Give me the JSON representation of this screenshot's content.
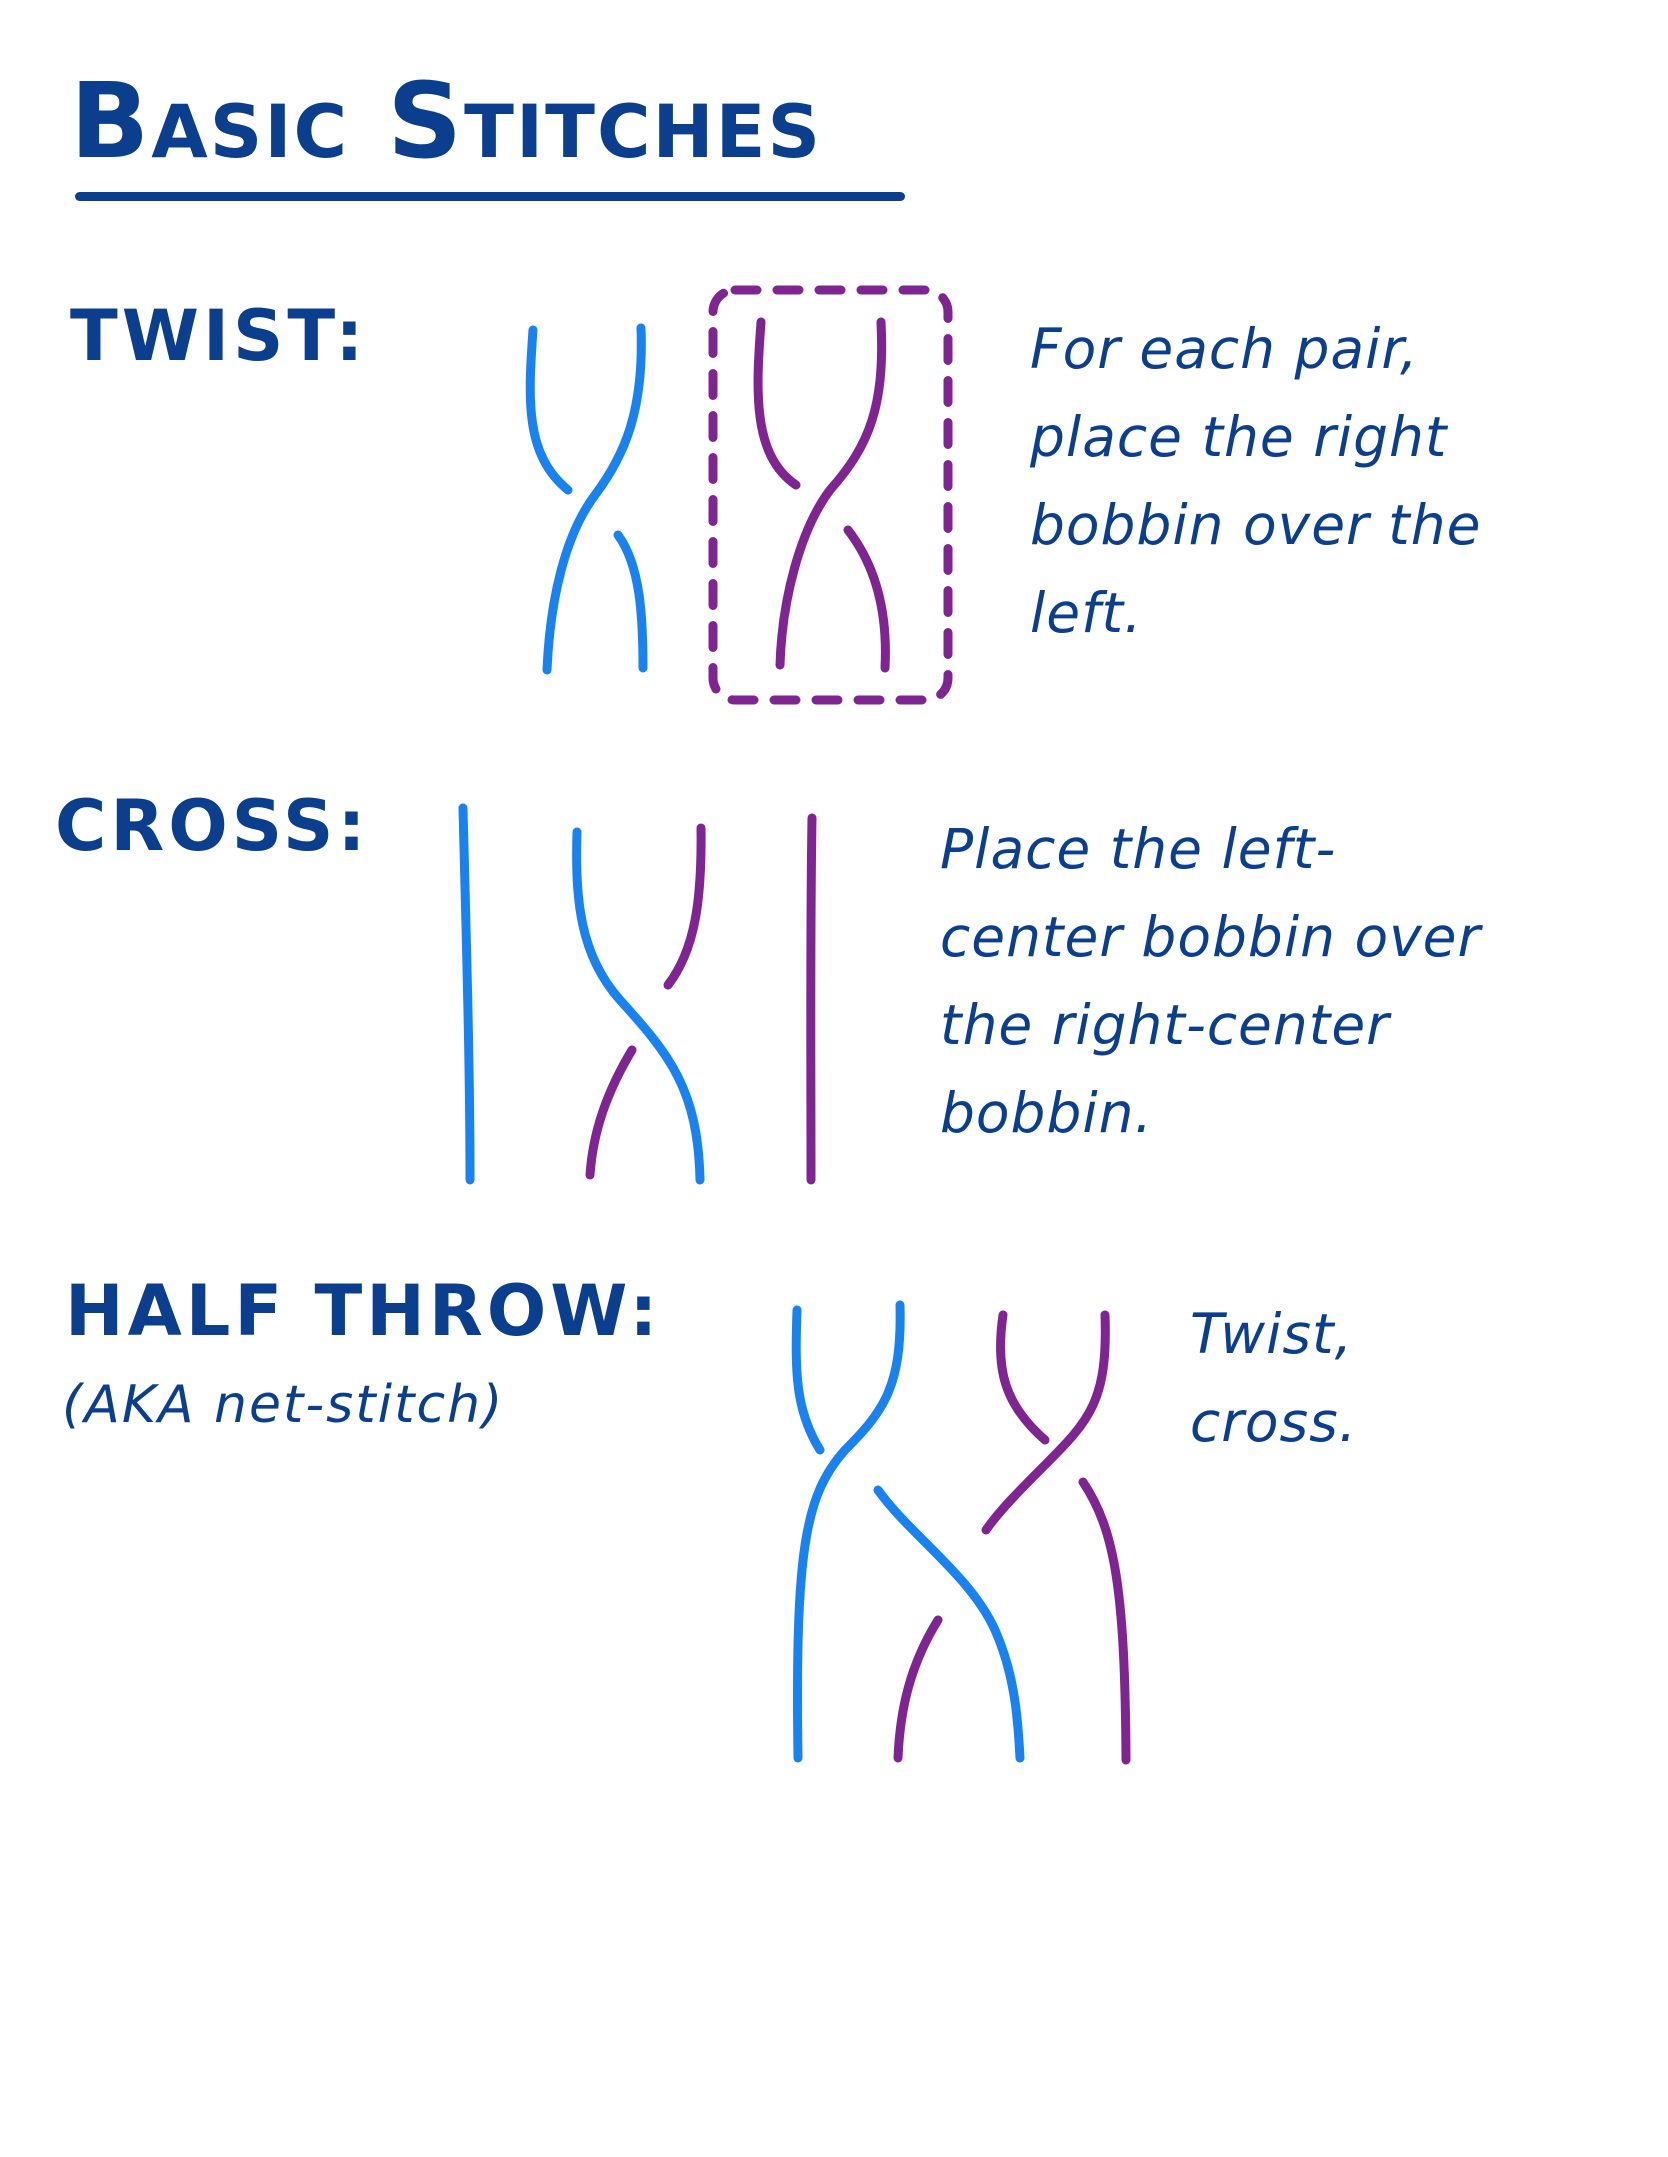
{
  "title": "Basic Stitches",
  "colors": {
    "ink": "#0b3f8e",
    "blue_bobbin": "#1a82ee",
    "purple_bobbin": "#7e2591"
  },
  "sections": {
    "twist": {
      "heading": "TWIST:",
      "note": "For each pair,\nplace the right\nbobbin over the\nleft."
    },
    "cross": {
      "heading": "CROSS:",
      "note": "Place the left-\ncenter bobbin over\nthe right-center\nbobbin."
    },
    "half_throw": {
      "heading": "HALF THROW:",
      "aside": "(AKA net-stitch)",
      "note": "Twist,\ncross."
    }
  }
}
